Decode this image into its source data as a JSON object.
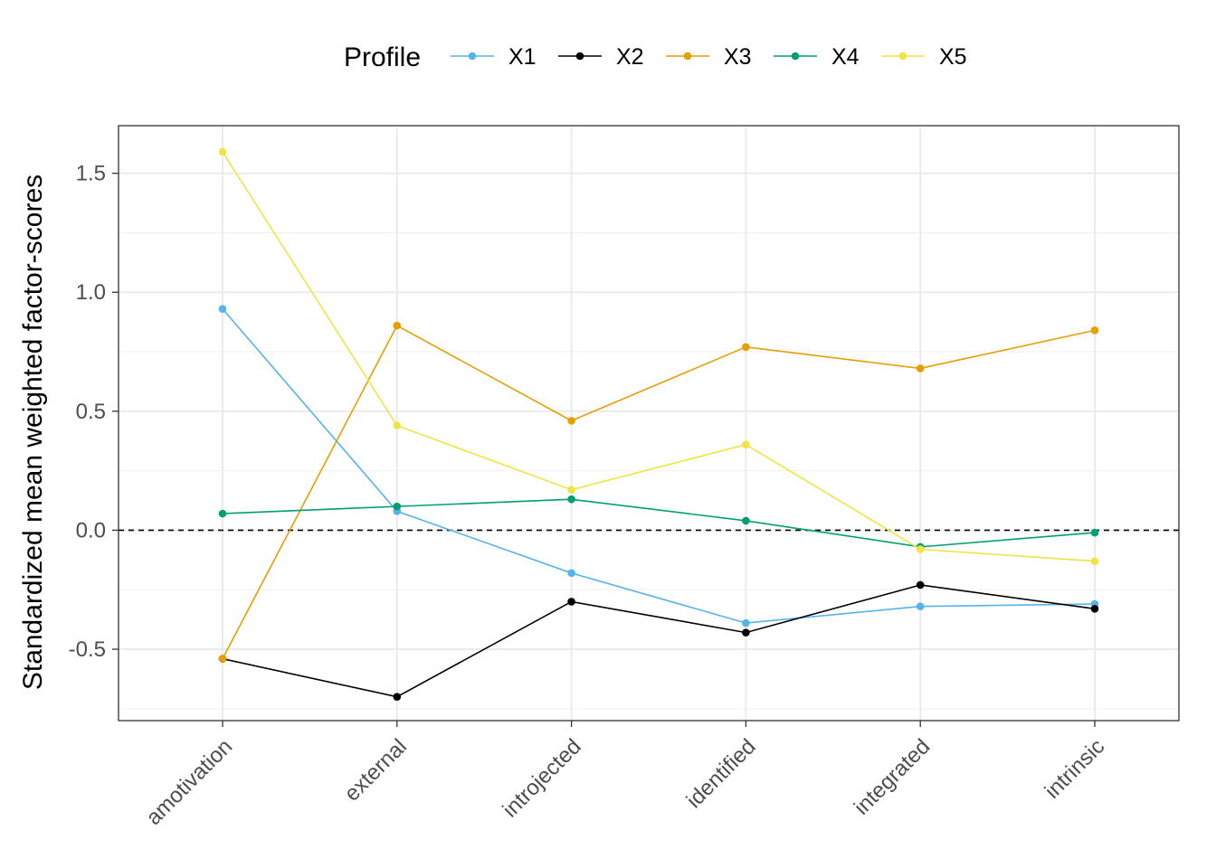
{
  "chart_data": {
    "type": "line",
    "title": "",
    "xlabel": "",
    "ylabel": "Standardized mean weighted factor-scores",
    "categories": [
      "amotivation",
      "external",
      "introjected",
      "identified",
      "integrated",
      "intrinsic"
    ],
    "ylim": [
      -0.8,
      1.7
    ],
    "yticks": [
      -0.5,
      0.0,
      0.5,
      1.0,
      1.5
    ],
    "ytick_labels": [
      "-0.5",
      "0.0",
      "0.5",
      "1.0",
      "1.5"
    ],
    "reference_line": {
      "y": 0,
      "style": "dashed"
    },
    "grid": true,
    "legend": {
      "title": "Profile",
      "position": "top"
    },
    "series": [
      {
        "name": "X1",
        "color": "#56B4E9",
        "values": [
          0.93,
          0.08,
          -0.18,
          -0.39,
          -0.32,
          -0.31
        ]
      },
      {
        "name": "X2",
        "color": "#000000",
        "values": [
          -0.54,
          -0.7,
          -0.3,
          -0.43,
          -0.23,
          -0.33
        ]
      },
      {
        "name": "X3",
        "color": "#E69F00",
        "values": [
          -0.54,
          0.86,
          0.46,
          0.77,
          0.68,
          0.84
        ]
      },
      {
        "name": "X4",
        "color": "#009E73",
        "values": [
          0.07,
          0.1,
          0.13,
          0.04,
          -0.07,
          -0.01
        ]
      },
      {
        "name": "X5",
        "color": "#F0E442",
        "values": [
          1.59,
          0.44,
          0.17,
          0.36,
          -0.08,
          -0.13
        ]
      }
    ]
  }
}
